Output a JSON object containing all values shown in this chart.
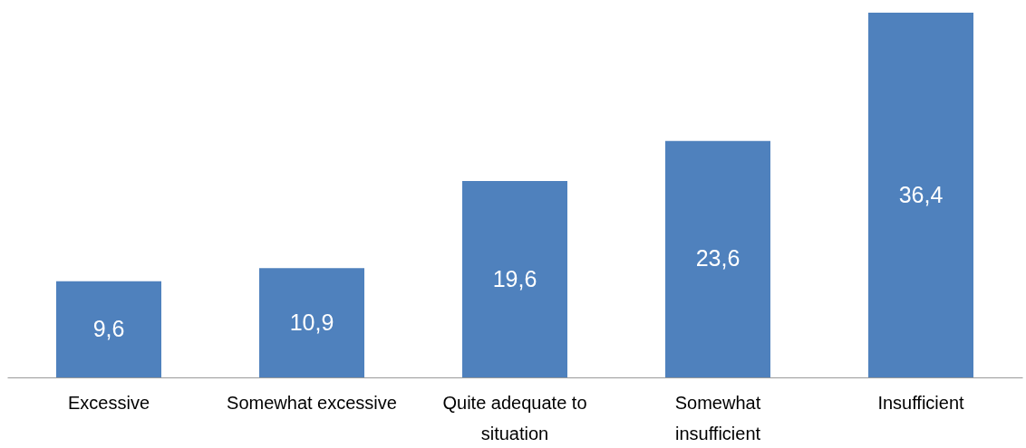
{
  "chart_data": {
    "type": "bar",
    "categories": [
      "Excessive",
      "Somewhat excessive",
      "Quite adequate to situation",
      "Somewhat insufficient",
      "Insufficient"
    ],
    "values": [
      9.6,
      10.9,
      19.6,
      23.6,
      36.4
    ],
    "value_labels": [
      "9,6",
      "10,9",
      "19,6",
      "23,6",
      "36,4"
    ],
    "color": "#4f81bd"
  }
}
